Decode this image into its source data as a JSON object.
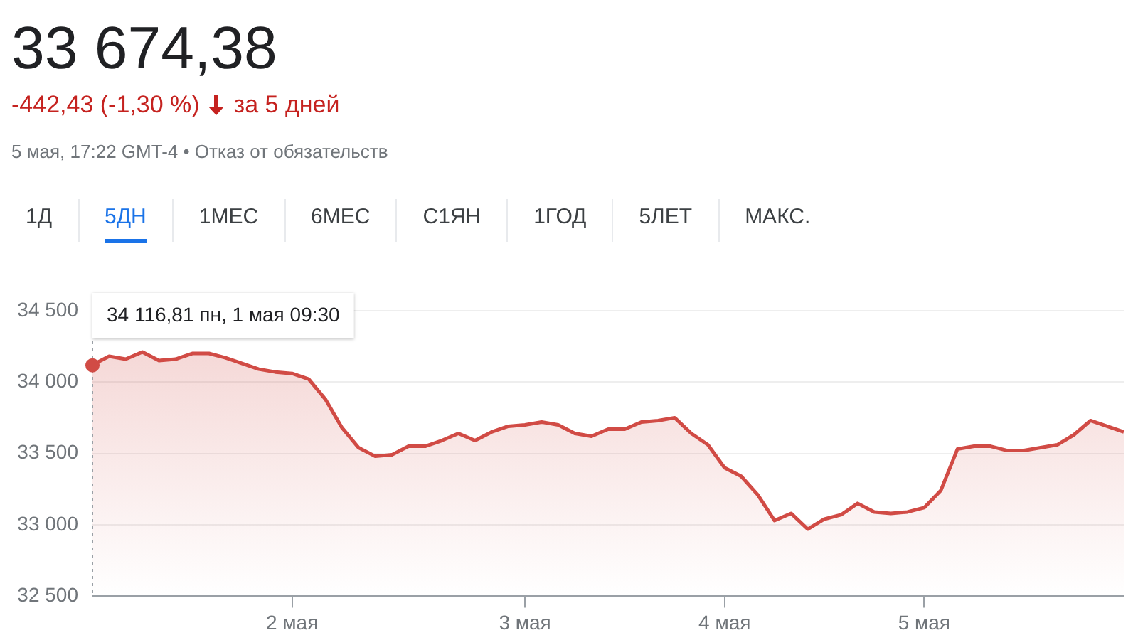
{
  "chart_data": {
    "type": "area",
    "title": "33 674,38",
    "subtitle": "-442,43 (-1,30 %)",
    "annotations": [
      "за 5 дней",
      "5 мая, 17:22 GMT-4 • Отказ от обязательств",
      "1Д",
      "5ДН",
      "1МЕС",
      "6МЕС",
      "С1ЯН",
      "1ГОД",
      "5ЛЕТ",
      "МАКС.",
      {
        "text": "34 116,81 пн, 1 мая 09:30",
        "y": 34116.81
      }
    ],
    "categories": [
      null,
      null,
      null,
      null,
      null,
      null,
      null,
      null,
      null,
      null,
      null,
      null,
      "2 мая",
      null,
      null,
      null,
      null,
      null,
      null,
      null,
      null,
      null,
      null,
      null,
      null,
      null,
      "3 мая",
      null,
      null,
      null,
      null,
      null,
      null,
      null,
      null,
      null,
      null,
      null,
      "4 мая",
      null,
      null,
      null,
      null,
      null,
      null,
      null,
      null,
      null,
      null,
      null,
      "5 мая",
      null,
      null,
      null,
      null,
      null,
      null,
      null,
      null,
      null,
      null,
      null,
      null
    ],
    "series": [
      {
        "color": "#d14b45",
        "values": [
          34120,
          34180,
          34160,
          34210,
          34150,
          34160,
          34200,
          34200,
          34170,
          34130,
          34090,
          34070,
          34060,
          34020,
          33880,
          33680,
          33540,
          33480,
          33490,
          33550,
          33550,
          33590,
          33640,
          33590,
          33650,
          33690,
          33700,
          33720,
          33700,
          33640,
          33620,
          33670,
          33670,
          33720,
          33730,
          33750,
          33640,
          33560,
          33400,
          33340,
          33210,
          33030,
          33080,
          32970,
          33040,
          33070,
          33150,
          33090,
          33080,
          33090,
          33120,
          33240,
          33530,
          33550,
          33550,
          33520,
          33520,
          33540,
          33560,
          33630,
          33730,
          33690,
          33650
        ]
      }
    ],
    "ylim": [
      32500,
      34500
    ],
    "yticks": [
      {
        "value": 32500,
        "label": "32 500"
      },
      {
        "value": 33000,
        "label": "33 000"
      },
      {
        "value": 33500,
        "label": "33 500"
      },
      {
        "value": 34000,
        "label": "34 000"
      },
      {
        "value": 34500,
        "label": "34 500"
      }
    ],
    "grid": "y",
    "legend": false
  }
}
